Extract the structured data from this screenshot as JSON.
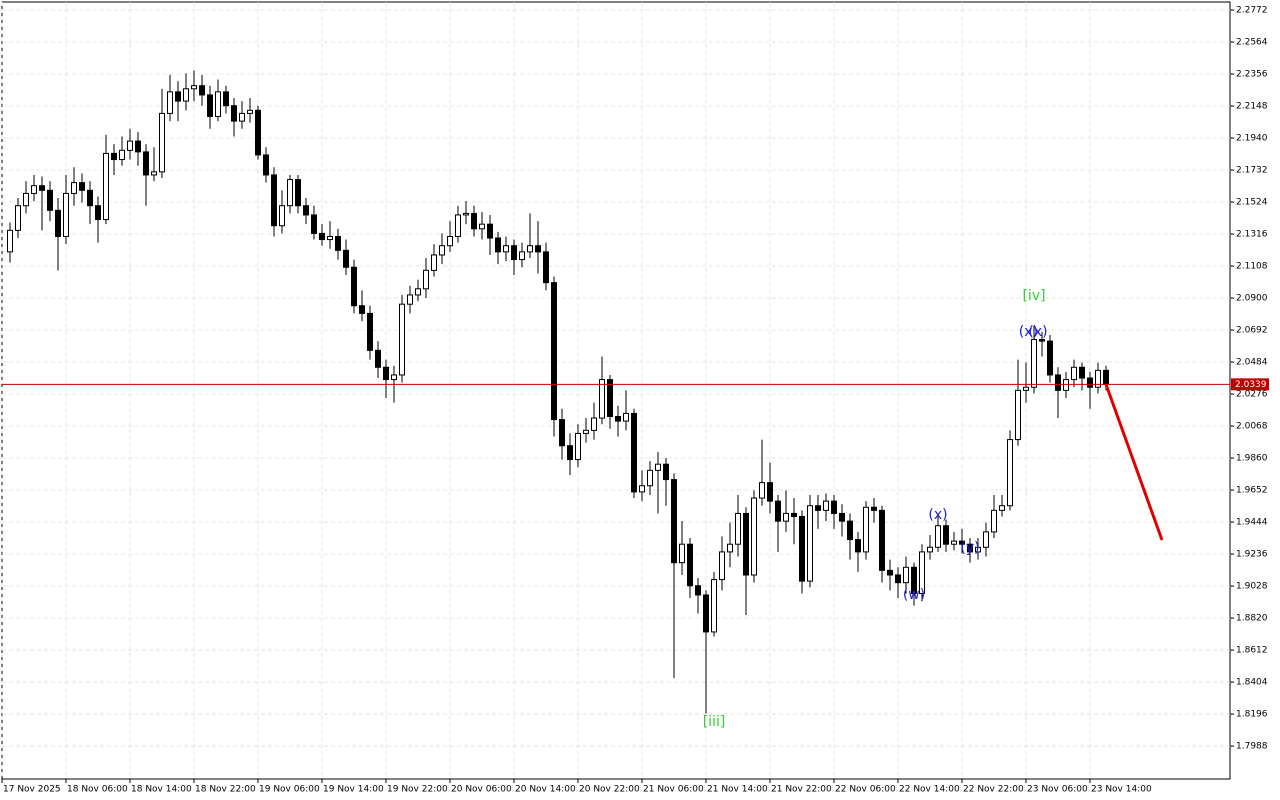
{
  "chart_data": {
    "type": "candlestick",
    "x": [
      1,
      2,
      3,
      4,
      5,
      6,
      7,
      8,
      9,
      10,
      11,
      12,
      13,
      14,
      15,
      16,
      17,
      18,
      19,
      20,
      21,
      22,
      23,
      24,
      25,
      26,
      27,
      28,
      29,
      30,
      31,
      32,
      33,
      34,
      35,
      36,
      37,
      38,
      39,
      40,
      41,
      42,
      43,
      44,
      45,
      46,
      47,
      48,
      49,
      50,
      51,
      52,
      53,
      54,
      55,
      56,
      57,
      58,
      59,
      60,
      61,
      62,
      63,
      64,
      65,
      66,
      67,
      68,
      69,
      70,
      71,
      72,
      73,
      74,
      75,
      76,
      77,
      78,
      79,
      80,
      81,
      82,
      83,
      84,
      85,
      86,
      87,
      88,
      89,
      90,
      91,
      92,
      93,
      94,
      95,
      96,
      97,
      98,
      99,
      100,
      101,
      102,
      103,
      104,
      105,
      106,
      107,
      108,
      109,
      110,
      111,
      112,
      113,
      114,
      115,
      116,
      117,
      118,
      119,
      120,
      121,
      122,
      123,
      124,
      125,
      126,
      127,
      128,
      129,
      130,
      131,
      132,
      133,
      134,
      135,
      136,
      137,
      138
    ],
    "open": [
      2.12,
      2.134,
      2.15,
      2.158,
      2.163,
      2.16,
      2.147,
      2.13,
      2.158,
      2.165,
      2.16,
      2.15,
      2.141,
      2.184,
      2.18,
      2.186,
      2.192,
      2.185,
      2.17,
      2.172,
      2.21,
      2.224,
      2.218,
      2.226,
      2.228,
      2.222,
      2.208,
      2.224,
      2.215,
      2.205,
      2.21,
      2.212,
      2.183,
      2.17,
      2.137,
      2.15,
      2.167,
      2.15,
      2.144,
      2.132,
      2.128,
      2.13,
      2.121,
      2.11,
      2.085,
      2.08,
      2.056,
      2.045,
      2.037,
      2.04,
      2.086,
      2.092,
      2.096,
      2.108,
      2.118,
      2.124,
      2.13,
      2.144,
      2.145,
      2.135,
      2.138,
      2.129,
      2.12,
      2.124,
      2.115,
      2.12,
      2.124,
      2.12,
      2.1,
      2.011,
      1.994,
      1.985,
      2.002,
      2.004,
      2.012,
      2.037,
      2.013,
      2.01,
      2.015,
      1.964,
      1.968,
      1.978,
      1.982,
      1.972,
      1.918,
      1.93,
      1.903,
      1.897,
      1.873,
      1.907,
      1.925,
      1.93,
      1.95,
      1.91,
      1.96,
      1.97,
      1.958,
      1.945,
      1.95,
      1.948,
      1.906,
      1.955,
      1.952,
      1.958,
      1.95,
      1.945,
      1.933,
      1.925,
      1.954,
      1.952,
      1.913,
      1.91,
      1.905,
      1.915,
      1.898,
      1.925,
      1.928,
      1.942,
      1.93,
      1.932,
      1.93,
      1.925,
      1.928,
      1.938,
      1.952,
      1.955,
      1.998,
      2.03,
      2.032,
      2.063,
      2.062,
      2.04,
      2.03,
      2.037,
      2.045,
      2.038,
      2.032,
      2.043
    ],
    "high": [
      2.139,
      2.155,
      2.166,
      2.17,
      2.169,
      2.166,
      2.155,
      2.17,
      2.175,
      2.171,
      2.166,
      2.156,
      2.196,
      2.19,
      2.195,
      2.2,
      2.198,
      2.19,
      2.188,
      2.226,
      2.235,
      2.231,
      2.236,
      2.238,
      2.235,
      2.228,
      2.232,
      2.228,
      2.22,
      2.218,
      2.22,
      2.215,
      2.188,
      2.175,
      2.16,
      2.17,
      2.17,
      2.155,
      2.15,
      2.138,
      2.14,
      2.135,
      2.128,
      2.115,
      2.095,
      2.085,
      2.062,
      2.05,
      2.046,
      2.092,
      2.098,
      2.102,
      2.116,
      2.125,
      2.132,
      2.14,
      2.15,
      2.153,
      2.15,
      2.146,
      2.144,
      2.133,
      2.13,
      2.128,
      2.126,
      2.145,
      2.14,
      2.126,
      2.104,
      2.018,
      2.002,
      2.008,
      2.012,
      2.022,
      2.052,
      2.04,
      2.02,
      2.03,
      2.018,
      1.978,
      1.984,
      1.99,
      1.986,
      1.976,
      1.945,
      1.934,
      1.908,
      1.9,
      1.912,
      1.935,
      1.944,
      1.962,
      1.954,
      1.965,
      1.998,
      1.983,
      1.962,
      1.965,
      1.96,
      1.952,
      1.962,
      1.962,
      1.963,
      1.962,
      1.956,
      1.95,
      1.938,
      1.958,
      1.96,
      1.955,
      1.92,
      1.915,
      1.922,
      1.918,
      1.93,
      1.936,
      1.948,
      1.946,
      1.938,
      1.94,
      1.934,
      1.934,
      1.944,
      1.962,
      1.962,
      2.004,
      2.05,
      2.048,
      2.072,
      2.068,
      2.066,
      2.045,
      2.042,
      2.05,
      2.048,
      2.042,
      2.048,
      2.046
    ],
    "low": [
      2.113,
      2.129,
      2.145,
      2.153,
      2.134,
      2.14,
      2.108,
      2.125,
      2.15,
      2.152,
      2.138,
      2.126,
      2.138,
      2.17,
      2.176,
      2.18,
      2.176,
      2.15,
      2.166,
      2.168,
      2.205,
      2.205,
      2.212,
      2.218,
      2.215,
      2.2,
      2.205,
      2.21,
      2.195,
      2.2,
      2.204,
      2.18,
      2.165,
      2.13,
      2.132,
      2.145,
      2.145,
      2.138,
      2.128,
      2.124,
      2.122,
      2.115,
      2.105,
      2.08,
      2.075,
      2.05,
      2.038,
      2.025,
      2.022,
      2.035,
      2.08,
      2.088,
      2.09,
      2.104,
      2.112,
      2.12,
      2.126,
      2.138,
      2.13,
      2.128,
      2.118,
      2.112,
      2.114,
      2.105,
      2.11,
      2.116,
      2.106,
      2.095,
      2.0,
      1.985,
      1.975,
      1.98,
      1.996,
      1.998,
      2.008,
      2.005,
      2.0,
      2.004,
      1.96,
      1.958,
      1.962,
      1.95,
      1.955,
      1.843,
      1.91,
      1.895,
      1.885,
      1.82,
      1.87,
      1.9,
      1.915,
      1.922,
      1.884,
      1.905,
      1.955,
      1.95,
      1.925,
      1.938,
      1.93,
      1.898,
      1.902,
      1.94,
      1.945,
      1.94,
      1.935,
      1.92,
      1.912,
      1.92,
      1.944,
      1.905,
      1.9,
      1.895,
      1.898,
      1.89,
      1.893,
      1.92,
      1.925,
      1.925,
      1.926,
      1.924,
      1.918,
      1.92,
      1.922,
      1.934,
      1.948,
      1.952,
      1.994,
      2.022,
      2.028,
      2.052,
      2.035,
      2.012,
      2.025,
      2.032,
      2.03,
      2.018,
      2.028,
      2.03
    ],
    "close": [
      2.134,
      2.15,
      2.158,
      2.163,
      2.16,
      2.147,
      2.13,
      2.158,
      2.165,
      2.16,
      2.15,
      2.141,
      2.184,
      2.18,
      2.186,
      2.192,
      2.185,
      2.17,
      2.172,
      2.21,
      2.224,
      2.218,
      2.226,
      2.228,
      2.222,
      2.208,
      2.224,
      2.215,
      2.205,
      2.21,
      2.212,
      2.183,
      2.17,
      2.137,
      2.15,
      2.167,
      2.15,
      2.144,
      2.132,
      2.128,
      2.13,
      2.121,
      2.11,
      2.085,
      2.08,
      2.056,
      2.045,
      2.037,
      2.04,
      2.086,
      2.092,
      2.096,
      2.108,
      2.118,
      2.124,
      2.13,
      2.144,
      2.145,
      2.135,
      2.138,
      2.129,
      2.12,
      2.124,
      2.115,
      2.12,
      2.124,
      2.12,
      2.1,
      2.011,
      1.994,
      1.985,
      2.002,
      2.004,
      2.012,
      2.037,
      2.013,
      2.01,
      2.015,
      1.964,
      1.968,
      1.978,
      1.982,
      1.972,
      1.918,
      1.93,
      1.903,
      1.897,
      1.873,
      1.907,
      1.925,
      1.93,
      1.95,
      1.91,
      1.96,
      1.97,
      1.958,
      1.945,
      1.95,
      1.948,
      1.906,
      1.955,
      1.952,
      1.958,
      1.95,
      1.945,
      1.933,
      1.925,
      1.954,
      1.952,
      1.913,
      1.91,
      1.905,
      1.915,
      1.898,
      1.925,
      1.928,
      1.942,
      1.93,
      1.932,
      1.93,
      1.925,
      1.928,
      1.938,
      1.952,
      1.955,
      1.998,
      2.03,
      2.032,
      2.063,
      2.062,
      2.04,
      2.03,
      2.037,
      2.045,
      2.038,
      2.032,
      2.043,
      2.0339
    ],
    "xlim": [
      0,
      153.5
    ],
    "xticks": [
      {
        "value": 0,
        "label": "17 Nov 2025"
      },
      {
        "value": 8,
        "label": "18 Nov 06:00"
      },
      {
        "value": 16,
        "label": "18 Nov 14:00"
      },
      {
        "value": 24,
        "label": "18 Nov 22:00"
      },
      {
        "value": 32,
        "label": "19 Nov 06:00"
      },
      {
        "value": 40,
        "label": "19 Nov 14:00"
      },
      {
        "value": 48,
        "label": "19 Nov 22:00"
      },
      {
        "value": 56,
        "label": "20 Nov 06:00"
      },
      {
        "value": 64,
        "label": "20 Nov 14:00"
      },
      {
        "value": 72,
        "label": "20 Nov 22:00"
      },
      {
        "value": 80,
        "label": "21 Nov 06:00"
      },
      {
        "value": 88,
        "label": "21 Nov 14:00"
      },
      {
        "value": 96,
        "label": "21 Nov 22:00"
      },
      {
        "value": 104,
        "label": "22 Nov 06:00"
      },
      {
        "value": 112,
        "label": "22 Nov 14:00"
      },
      {
        "value": 120,
        "label": "22 Nov 22:00"
      },
      {
        "value": 128,
        "label": "23 Nov 06:00"
      },
      {
        "value": 136,
        "label": "23 Nov 14:00"
      }
    ],
    "ylim": [
      1.7774,
      2.2824
    ],
    "yticks": [
      2.2772,
      2.2564,
      2.2356,
      2.2148,
      {
        "value": 2.194,
        "label": "2.1940"
      },
      2.1732,
      2.1524,
      2.1316,
      2.1108,
      {
        "value": 2.09,
        "label": "2.0900"
      },
      2.0692,
      2.0484,
      2.0276,
      2.0068,
      {
        "value": 1.986,
        "label": "1.9860"
      },
      1.9652,
      1.9444,
      1.9236,
      1.9028,
      {
        "value": 1.882,
        "label": "1.8820"
      },
      1.8612,
      1.8404,
      1.8196,
      1.7988
    ],
    "grid": true,
    "last_price": 2.0339,
    "last_price_color": "#c00000",
    "forecast": {
      "x": [
        138,
        145
      ],
      "values": [
        2.0339,
        1.9327
      ],
      "color": "#e00000"
    },
    "annotations": [
      {
        "text": "[iii]",
        "x": 89,
        "y": 1.8144,
        "color": "#33cc33"
      },
      {
        "text": "[iv]",
        "x": 129,
        "y": 2.0913,
        "color": "#33cc33"
      },
      {
        "text": "(x)",
        "x": 128.3,
        "y": 2.068,
        "color": "#2020d0"
      },
      {
        "text": "(x)",
        "x": 129.5,
        "y": 2.068,
        "color": "#2020d0"
      },
      {
        "text": "(w)",
        "x": 114,
        "y": 1.897,
        "color": "#2020d0"
      },
      {
        "text": "(x)",
        "x": 117,
        "y": 1.949,
        "color": "#2020d0"
      },
      {
        "text": "(y)",
        "x": 121,
        "y": 1.9275,
        "color": "#2020d0"
      }
    ]
  }
}
